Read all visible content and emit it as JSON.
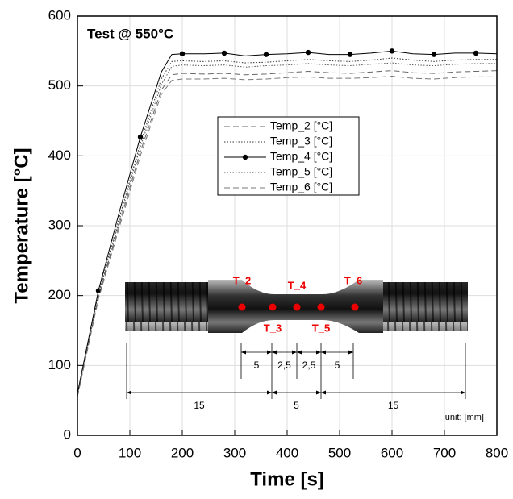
{
  "chart_data": {
    "type": "line",
    "annotation": "Test @ 550°C",
    "xlabel": "Time [s]",
    "ylabel": "Temperature [°C]",
    "x": [
      0,
      40,
      80,
      120,
      160,
      180,
      200,
      240,
      280,
      320,
      360,
      400,
      440,
      480,
      520,
      560,
      600,
      640,
      680,
      720,
      760,
      800
    ],
    "series": [
      {
        "name": "Temp_2 [°C]",
        "color": "#666666",
        "style": "dashed",
        "values": [
          56,
          198,
          303,
          406,
          494,
          516,
          518,
          517,
          518,
          516,
          517,
          519,
          521,
          519,
          518,
          520,
          522,
          519,
          518,
          520,
          521,
          522
        ]
      },
      {
        "name": "Temp_3 [°C]",
        "color": "#333333",
        "style": "dotted",
        "values": [
          58,
          203,
          312,
          418,
          510,
          535,
          536,
          535,
          536,
          533,
          534,
          536,
          538,
          536,
          535,
          537,
          540,
          537,
          535,
          537,
          538,
          538
        ]
      },
      {
        "name": "Temp_4 [°C]",
        "color": "#000000",
        "style": "solid",
        "marker": "circle",
        "values": [
          60,
          207,
          320,
          427,
          520,
          545,
          546,
          546,
          547,
          543,
          545,
          546,
          548,
          545,
          545,
          547,
          550,
          546,
          545,
          547,
          547,
          546
        ]
      },
      {
        "name": "Temp_5 [°C]",
        "color": "#555555",
        "style": "dotted",
        "values": [
          57,
          200,
          308,
          413,
          502,
          528,
          530,
          529,
          530,
          527,
          529,
          530,
          532,
          530,
          529,
          531,
          533,
          530,
          529,
          531,
          532,
          532
        ]
      },
      {
        "name": "Temp_6 [°C]",
        "color": "#777777",
        "style": "dashed",
        "values": [
          55,
          195,
          298,
          400,
          488,
          508,
          510,
          510,
          511,
          509,
          510,
          512,
          513,
          511,
          511,
          512,
          514,
          511,
          510,
          512,
          513,
          513
        ]
      }
    ],
    "xlim": [
      0,
      800
    ],
    "xticks": [
      0,
      100,
      200,
      300,
      400,
      500,
      600,
      700,
      800
    ],
    "ylim": [
      0,
      600
    ],
    "yticks": [
      0,
      100,
      200,
      300,
      400,
      500,
      600
    ],
    "grid": true,
    "inset": {
      "sensors": [
        "T_2",
        "T_3",
        "T_4",
        "T_5",
        "T_6"
      ],
      "dimensions": [
        "5",
        "2,5",
        "2,5",
        "5",
        "15",
        "5",
        "15"
      ],
      "unit": "unit: [mm]"
    }
  }
}
